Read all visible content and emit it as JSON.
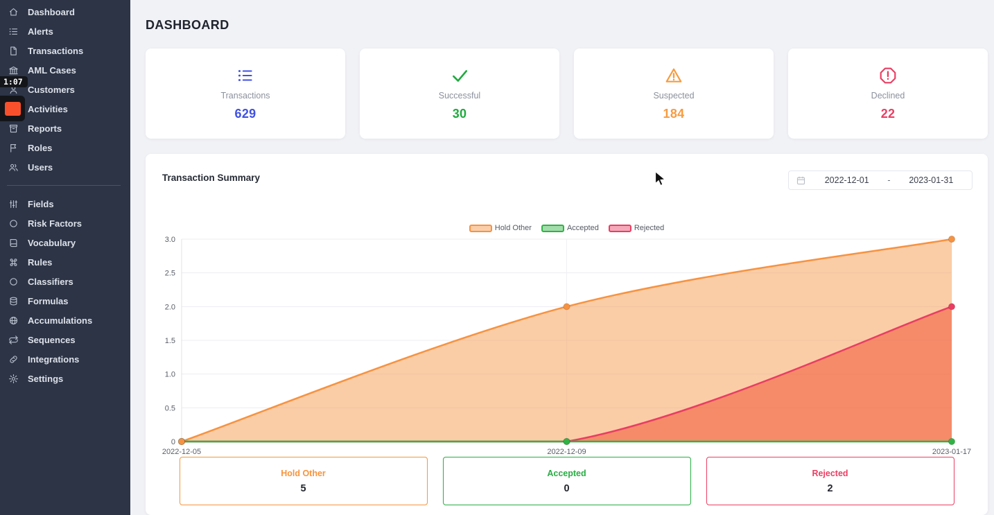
{
  "recording_overlay": {
    "timer": "1:07",
    "stop_color": "#f8502c"
  },
  "header": {
    "title": "DASHBOARD"
  },
  "sidebar": {
    "items": [
      {
        "label": "Dashboard",
        "icon": "home-icon"
      },
      {
        "label": "Alerts",
        "icon": "list-icon"
      },
      {
        "label": "Transactions",
        "icon": "file-icon"
      },
      {
        "label": "AML Cases",
        "icon": "bank-icon"
      },
      {
        "label": "Customers",
        "icon": "customer-icon"
      },
      {
        "label": "Activities",
        "icon": "activity-icon"
      },
      {
        "label": "Reports",
        "icon": "archive-icon"
      },
      {
        "label": "Roles",
        "icon": "flag-icon"
      },
      {
        "label": "Users",
        "icon": "users-icon"
      },
      {
        "label": "Fields",
        "icon": "sliders-icon"
      },
      {
        "label": "Risk Factors",
        "icon": "circle-icon"
      },
      {
        "label": "Vocabulary",
        "icon": "book-icon"
      },
      {
        "label": "Rules",
        "icon": "command-icon"
      },
      {
        "label": "Classifiers",
        "icon": "circle-icon"
      },
      {
        "label": "Formulas",
        "icon": "database-icon"
      },
      {
        "label": "Accumulations",
        "icon": "globe-icon"
      },
      {
        "label": "Sequences",
        "icon": "repeat-icon"
      },
      {
        "label": "Integrations",
        "icon": "link-icon"
      },
      {
        "label": "Settings",
        "icon": "gear-icon"
      }
    ],
    "divider_after": "Users"
  },
  "stat_cards": [
    {
      "label": "Transactions",
      "value": "629",
      "color": "#3f51e3",
      "icon": "list-icon"
    },
    {
      "label": "Successful",
      "value": "30",
      "color": "#1faa3e",
      "icon": "check-icon"
    },
    {
      "label": "Suspected",
      "value": "184",
      "color": "#f79b3e",
      "icon": "warning-triangle-icon"
    },
    {
      "label": "Declined",
      "value": "22",
      "color": "#ea3e63",
      "icon": "alert-octagon-icon"
    }
  ],
  "summary_panel": {
    "title": "Transaction Summary",
    "date_range": {
      "start": "2022-12-01",
      "separator": "-",
      "end": "2023-01-31"
    },
    "totals": [
      {
        "label": "Hold Other",
        "value": "5",
        "color": "#f7943c"
      },
      {
        "label": "Accepted",
        "value": "0",
        "color": "#27ae42"
      },
      {
        "label": "Rejected",
        "value": "2",
        "color": "#ea3e63"
      }
    ]
  },
  "chart_data": {
    "type": "area",
    "title": "Transaction Summary",
    "x": [
      "2022-12-05",
      "2022-12-09",
      "2023-01-17"
    ],
    "series": [
      {
        "name": "Hold Other",
        "values": [
          0,
          2,
          3
        ],
        "color": "#f79240",
        "fill": "rgba(247,146,64,0.46)"
      },
      {
        "name": "Accepted",
        "values": [
          0,
          0,
          0
        ],
        "color": "#2fb344",
        "fill": "none"
      },
      {
        "name": "Rejected",
        "values": [
          0,
          0,
          2
        ],
        "color": "#e93d63",
        "fill": "rgba(240,85,55,0.55)"
      }
    ],
    "ylim": [
      0,
      3.0
    ],
    "yticks": [
      0,
      0.5,
      1.0,
      1.5,
      2.0,
      2.5,
      3.0
    ],
    "grid": true,
    "legend_position": "top-center"
  }
}
